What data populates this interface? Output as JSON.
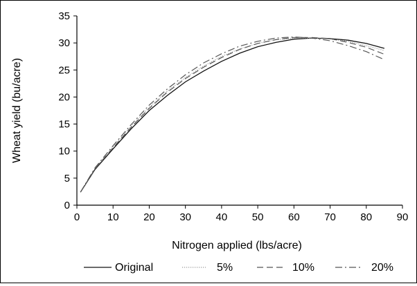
{
  "chart_data": {
    "type": "line",
    "xlabel": "Nitrogen applied (lbs/acre)",
    "ylabel": "Wheat yield (bu/acre)",
    "xlim": [
      0,
      90
    ],
    "ylim": [
      0,
      35
    ],
    "x_ticks": [
      0,
      10,
      20,
      30,
      40,
      50,
      60,
      70,
      80,
      90
    ],
    "y_ticks": [
      0,
      5,
      10,
      15,
      20,
      25,
      30,
      35
    ],
    "grid": false,
    "legend_position": "bottom",
    "x": [
      1,
      5,
      10,
      15,
      20,
      25,
      30,
      35,
      40,
      45,
      50,
      55,
      60,
      65,
      70,
      75,
      80,
      85
    ],
    "series": [
      {
        "name": "Original",
        "style": "solid",
        "color": "#111111",
        "values": [
          2.4,
          6.6,
          10.4,
          14.1,
          17.5,
          20.3,
          22.8,
          24.8,
          26.6,
          28.1,
          29.3,
          30.1,
          30.7,
          30.9,
          30.8,
          30.5,
          29.9,
          29.0
        ]
      },
      {
        "name": "5%",
        "style": "dotted",
        "color": "#999999",
        "values": [
          2.4,
          6.8,
          10.8,
          14.6,
          18.1,
          21.1,
          23.6,
          25.7,
          27.5,
          28.9,
          29.9,
          30.6,
          30.9,
          30.9,
          30.7,
          30.3,
          29.5,
          28.6
        ]
      },
      {
        "name": "10%",
        "style": "dashed",
        "color": "#555555",
        "values": [
          2.4,
          6.7,
          10.6,
          14.4,
          17.9,
          20.9,
          23.4,
          25.5,
          27.3,
          28.8,
          29.9,
          30.6,
          31.0,
          31.0,
          30.8,
          30.1,
          29.2,
          27.9
        ]
      },
      {
        "name": "20%",
        "style": "dashdot",
        "color": "#555555",
        "values": [
          2.4,
          6.9,
          11.0,
          14.9,
          18.5,
          21.5,
          24.1,
          26.3,
          28.0,
          29.4,
          30.3,
          30.9,
          31.1,
          30.9,
          30.4,
          29.5,
          28.4,
          26.9
        ]
      }
    ]
  }
}
